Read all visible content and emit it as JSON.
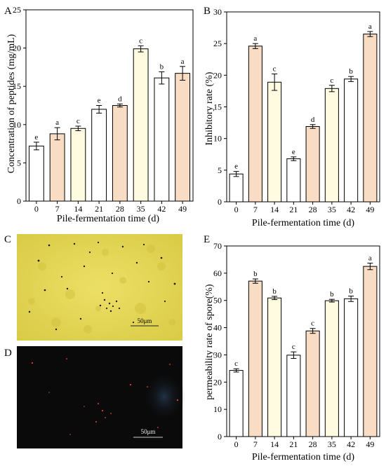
{
  "colors": {
    "white_bar": "#ffffff",
    "peach_bar": "#f9dcc4",
    "cream_bar": "#fffbe0",
    "bar_stroke": "#000000",
    "micrograph_yellow": "#e6d95a",
    "micrograph_dark": "#0a0a0a",
    "particle_red": "#e04a3a"
  },
  "chart_data": [
    {
      "panel": "A",
      "type": "bar",
      "xlabel": "Pile-fermentation time (d)",
      "ylabel": "Concentration of peptides (mg/mL)",
      "ylim": [
        0,
        25
      ],
      "yticks": [
        0,
        5,
        10,
        15,
        20,
        25
      ],
      "categories": [
        "0",
        "7",
        "14",
        "21",
        "28",
        "35",
        "42",
        "49"
      ],
      "values": [
        7.2,
        8.8,
        9.5,
        12.0,
        12.5,
        19.9,
        16.1,
        16.7
      ],
      "errors": [
        0.5,
        0.8,
        0.3,
        0.5,
        0.2,
        0.4,
        0.8,
        0.9
      ],
      "labels": [
        "e",
        "a",
        "c",
        "e",
        "d",
        "c",
        "b",
        "a"
      ],
      "bar_fill": [
        "white_bar",
        "peach_bar",
        "cream_bar",
        "white_bar",
        "peach_bar",
        "cream_bar",
        "white_bar",
        "peach_bar"
      ]
    },
    {
      "panel": "B",
      "type": "bar",
      "xlabel": "Pile-fermentation time (d)",
      "ylabel": "Inhibitory rate (%)",
      "ylim": [
        0,
        30
      ],
      "yticks": [
        0,
        5,
        10,
        15,
        20,
        25,
        30
      ],
      "categories": [
        "0",
        "7",
        "14",
        "21",
        "28",
        "35",
        "42",
        "49"
      ],
      "values": [
        4.4,
        24.6,
        18.9,
        6.8,
        11.9,
        17.9,
        19.4,
        26.5
      ],
      "errors": [
        0.4,
        0.4,
        1.3,
        0.3,
        0.3,
        0.5,
        0.4,
        0.4
      ],
      "labels": [
        "e",
        "a",
        "c",
        "e",
        "d",
        "c",
        "b",
        "a"
      ],
      "bar_fill": [
        "white_bar",
        "peach_bar",
        "cream_bar",
        "white_bar",
        "peach_bar",
        "cream_bar",
        "white_bar",
        "peach_bar"
      ]
    },
    {
      "panel": "E",
      "type": "bar",
      "xlabel": "Pile-fermentation time (d)",
      "ylabel": "permeability rate of spore(%)",
      "ylim": [
        0,
        70
      ],
      "yticks": [
        0,
        10,
        20,
        30,
        40,
        50,
        60,
        70
      ],
      "categories": [
        "0",
        "7",
        "14",
        "21",
        "28",
        "35",
        "42",
        "49"
      ],
      "values": [
        24.3,
        57.1,
        50.9,
        29.9,
        38.8,
        49.9,
        50.6,
        62.5
      ],
      "errors": [
        0.6,
        0.8,
        0.6,
        1.2,
        0.9,
        0.5,
        1.0,
        1.2
      ],
      "labels": [
        "c",
        "b",
        "b",
        "c",
        "c",
        "b",
        "b",
        "a"
      ],
      "bar_fill": [
        "white_bar",
        "peach_bar",
        "cream_bar",
        "white_bar",
        "peach_bar",
        "cream_bar",
        "white_bar",
        "peach_bar"
      ]
    }
  ],
  "micrographs": [
    {
      "panel": "C",
      "scale_bar": "50μm",
      "background": "micrograph_yellow"
    },
    {
      "panel": "D",
      "scale_bar": "50μm",
      "background": "micrograph_dark"
    }
  ]
}
